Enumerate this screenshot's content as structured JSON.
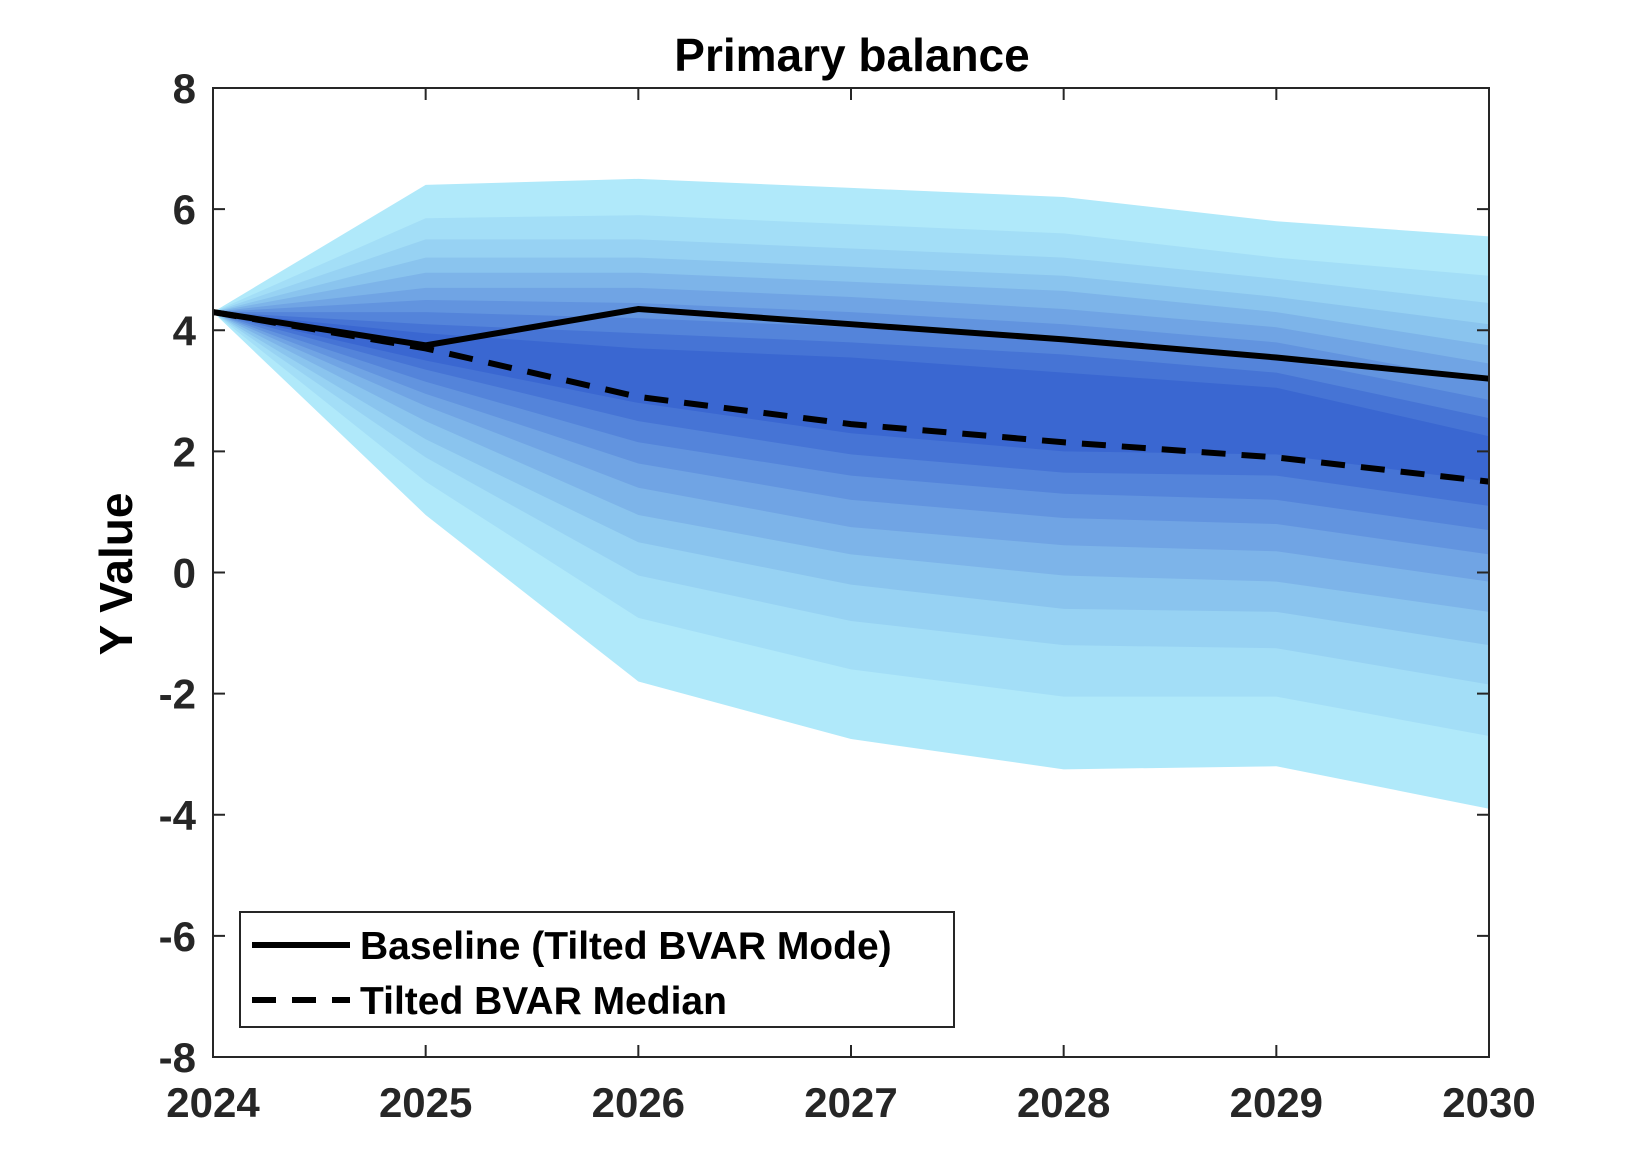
{
  "chart_data": {
    "type": "area",
    "title": "Primary balance",
    "xlabel": "",
    "ylabel": "Y Value",
    "x": [
      2024,
      2025,
      2026,
      2027,
      2028,
      2029,
      2030
    ],
    "xlim": [
      2024,
      2030
    ],
    "ylim": [
      -8,
      8
    ],
    "xticks": [
      "2024",
      "2025",
      "2026",
      "2027",
      "2028",
      "2029",
      "2030"
    ],
    "yticks": [
      "-8",
      "-6",
      "-4",
      "-2",
      "0",
      "2",
      "4",
      "6",
      "8"
    ],
    "grid": false,
    "legend_position": "bottom-left",
    "fan_bands": {
      "upper": [
        [
          4.3,
          6.4,
          6.5,
          6.35,
          6.2,
          5.8,
          5.55
        ],
        [
          4.3,
          5.85,
          5.9,
          5.75,
          5.6,
          5.2,
          4.9
        ],
        [
          4.3,
          5.5,
          5.5,
          5.35,
          5.2,
          4.85,
          4.45
        ],
        [
          4.3,
          5.2,
          5.2,
          5.05,
          4.9,
          4.55,
          4.1
        ],
        [
          4.3,
          4.95,
          4.95,
          4.8,
          4.65,
          4.3,
          3.75
        ],
        [
          4.3,
          4.7,
          4.7,
          4.55,
          4.35,
          4.05,
          3.45
        ],
        [
          4.3,
          4.5,
          4.45,
          4.3,
          4.1,
          3.8,
          3.15
        ],
        [
          4.3,
          4.3,
          4.2,
          4.05,
          3.85,
          3.55,
          2.85
        ],
        [
          4.3,
          4.1,
          3.95,
          3.8,
          3.6,
          3.3,
          2.55
        ],
        [
          4.3,
          3.95,
          3.7,
          3.55,
          3.3,
          3.05,
          2.25
        ]
      ],
      "lower": [
        [
          4.3,
          0.95,
          -1.8,
          -2.75,
          -3.25,
          -3.2,
          -3.9
        ],
        [
          4.3,
          1.5,
          -0.75,
          -1.6,
          -2.05,
          -2.05,
          -2.7
        ],
        [
          4.3,
          1.9,
          -0.05,
          -0.8,
          -1.2,
          -1.25,
          -1.85
        ],
        [
          4.3,
          2.2,
          0.5,
          -0.2,
          -0.6,
          -0.65,
          -1.2
        ],
        [
          4.3,
          2.5,
          0.95,
          0.3,
          -0.05,
          -0.15,
          -0.65
        ],
        [
          4.3,
          2.75,
          1.4,
          0.75,
          0.45,
          0.35,
          -0.15
        ],
        [
          4.3,
          2.95,
          1.8,
          1.2,
          0.9,
          0.8,
          0.3
        ],
        [
          4.3,
          3.15,
          2.15,
          1.6,
          1.3,
          1.2,
          0.7
        ],
        [
          4.3,
          3.35,
          2.5,
          1.95,
          1.65,
          1.6,
          1.1
        ],
        [
          4.3,
          3.5,
          2.8,
          2.3,
          2.0,
          1.95,
          1.5
        ]
      ],
      "colors": [
        "#b0e9fa",
        "#a3def7",
        "#97d2f3",
        "#8ac4ee",
        "#7db4e9",
        "#70a4e4",
        "#6294df",
        "#5484da",
        "#4674d5",
        "#3a67d1"
      ]
    },
    "series": [
      {
        "name": "Baseline (Tilted BVAR Mode)",
        "style": "solid",
        "color": "#000000",
        "values": [
          4.3,
          3.75,
          4.35,
          4.1,
          3.85,
          3.55,
          3.2
        ]
      },
      {
        "name": "Tilted BVAR Median",
        "style": "dashed",
        "color": "#000000",
        "values": [
          4.3,
          3.7,
          2.9,
          2.45,
          2.15,
          1.9,
          1.5
        ]
      }
    ]
  }
}
